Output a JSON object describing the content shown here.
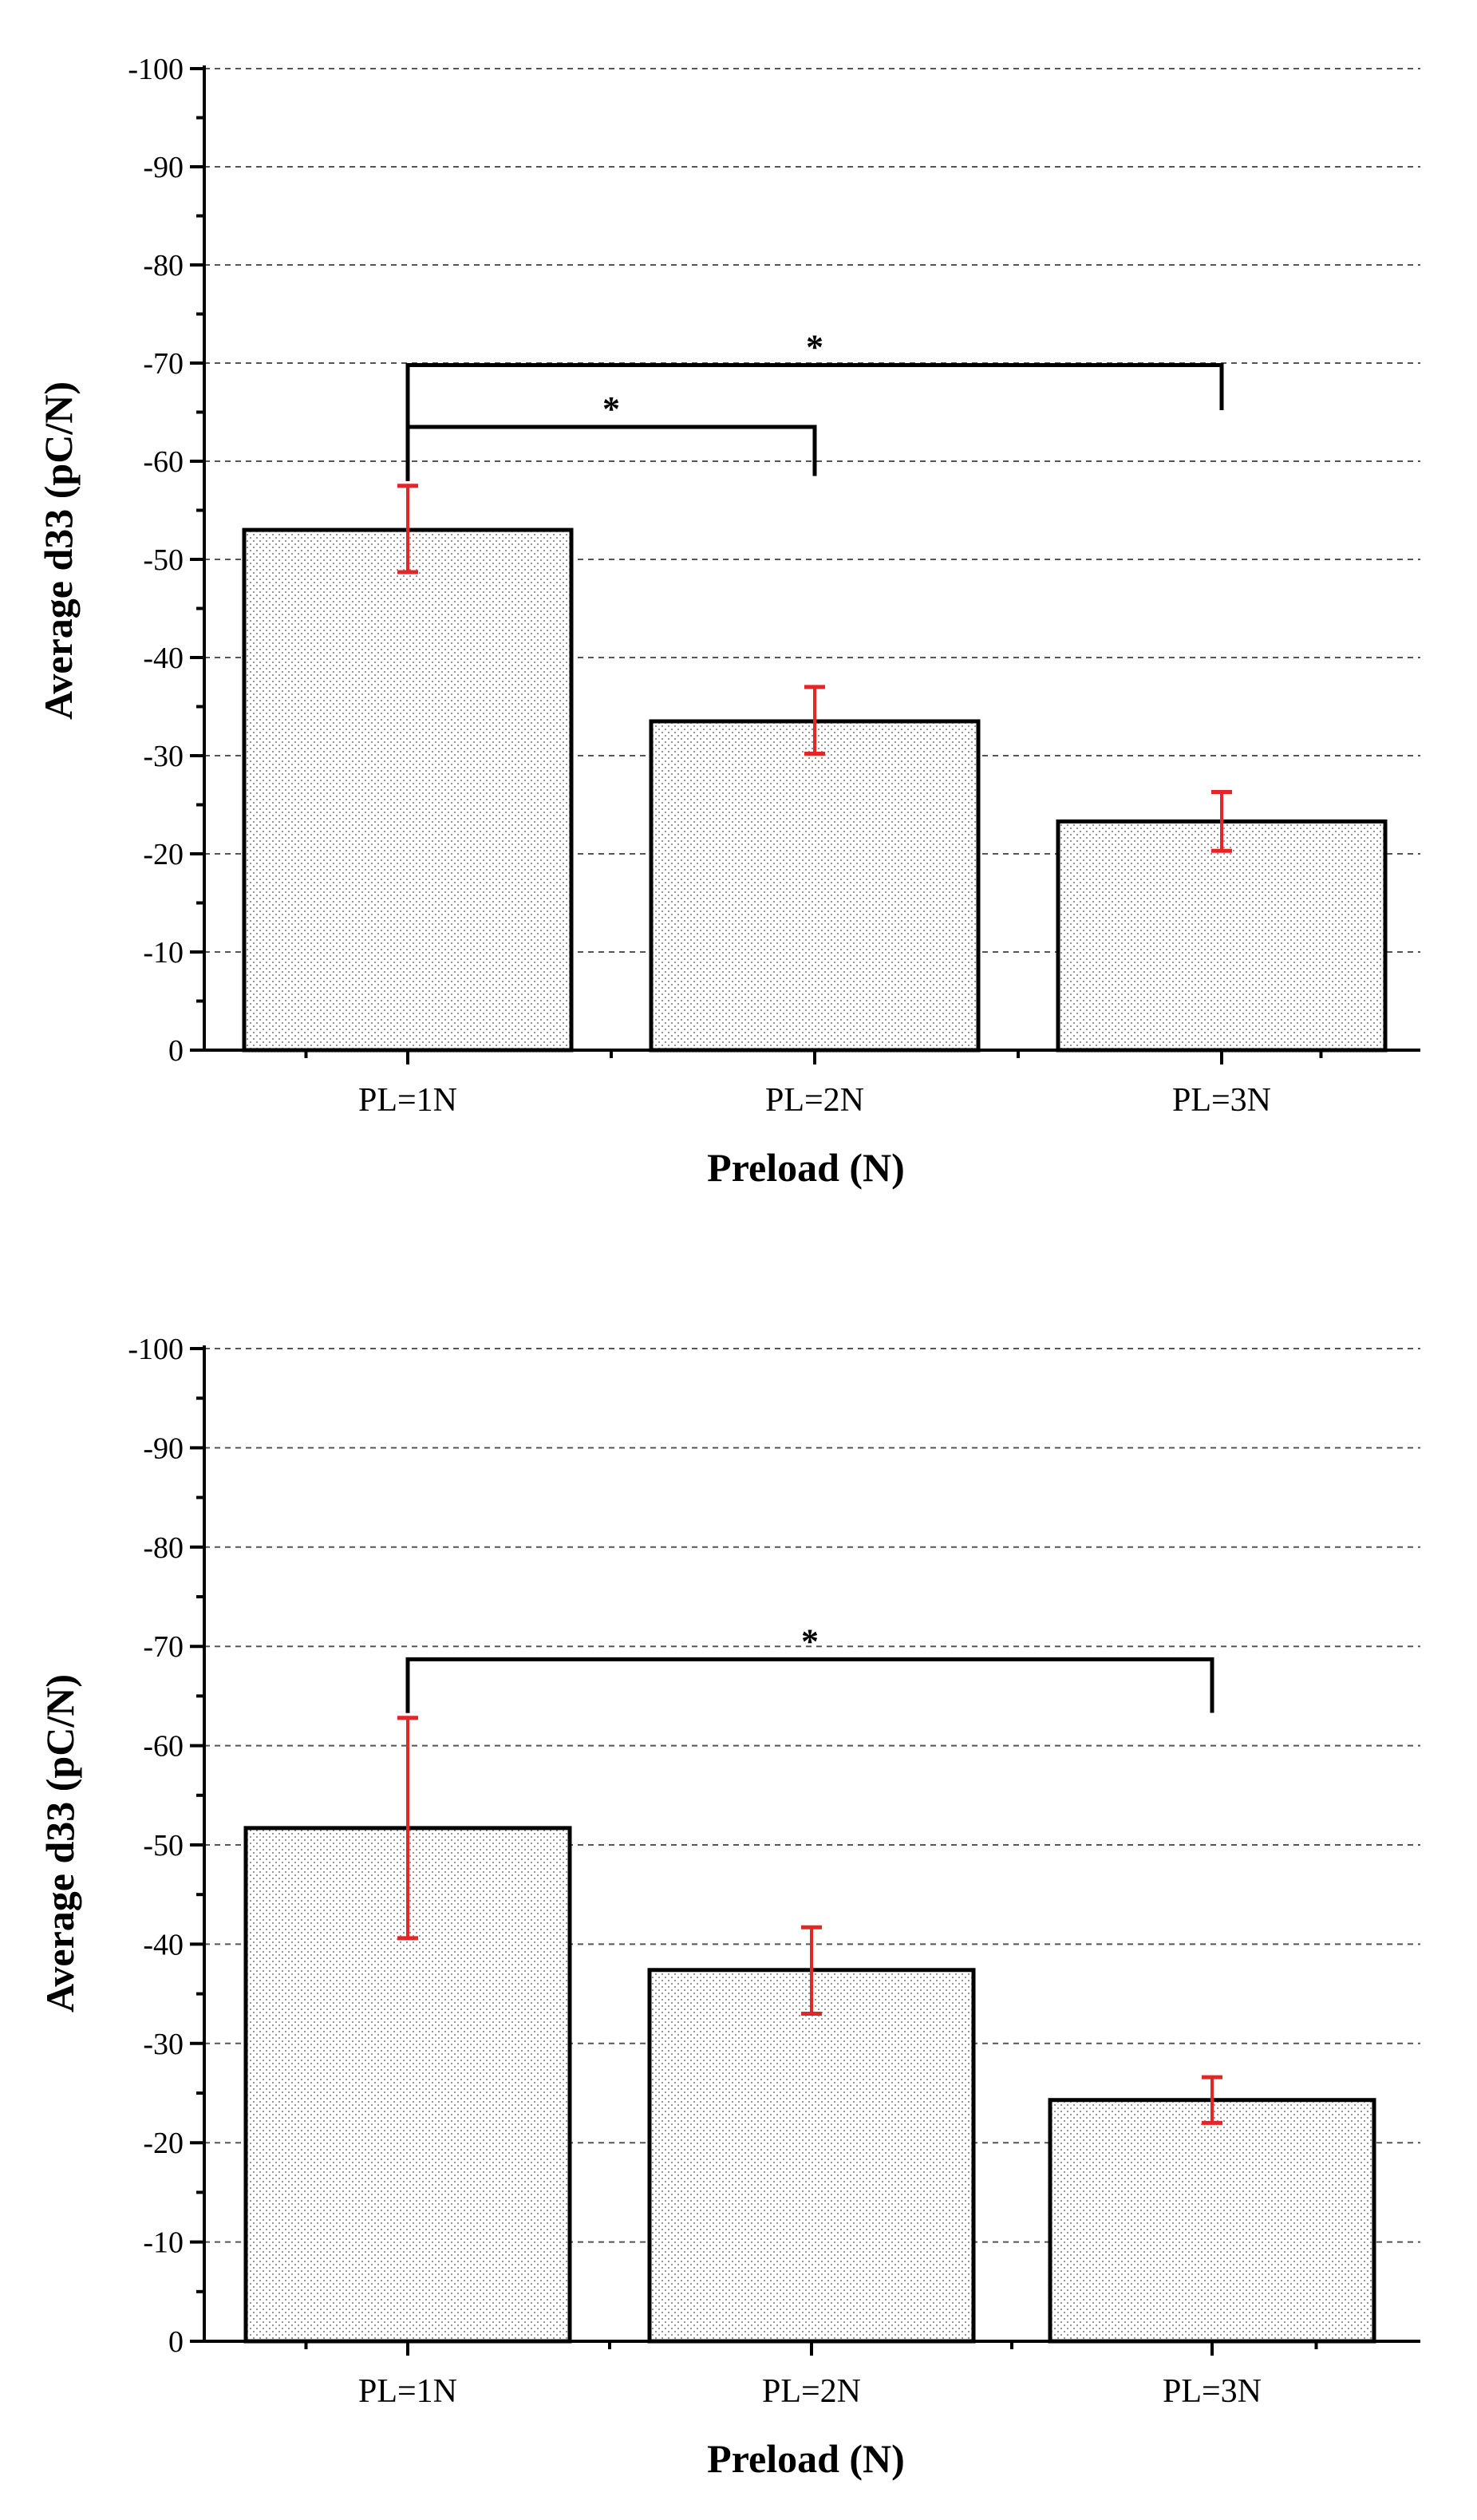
{
  "chart_data": [
    {
      "type": "bar",
      "title": "",
      "categories": [
        "PL=1N",
        "PL=2N",
        "PL=3N"
      ],
      "values": [
        -53,
        -33.5,
        -23.3
      ],
      "error_high": [
        -57.5,
        -37,
        -26.3
      ],
      "error_low": [
        -48.7,
        -30.2,
        -20.3
      ],
      "xlabel": "Preload (N)",
      "ylabel": "Average d33 (pC/N)",
      "ylim": [
        0,
        -100
      ],
      "yticks": [
        "0",
        "-10",
        "-20",
        "-30",
        "-40",
        "-50",
        "-60",
        "-70",
        "-80",
        "-90",
        "-100"
      ],
      "gridlines": true,
      "bar_pattern": "dotted",
      "error_bar_color": "#e32626",
      "significance": [
        {
          "from": 0,
          "to": 1,
          "label": "*",
          "level": -63.5,
          "right_end": -58.5
        },
        {
          "from": 0,
          "to": 2,
          "label": "*",
          "level": -69.8,
          "right_end": -65.2
        }
      ]
    },
    {
      "type": "bar",
      "title": "",
      "categories": [
        "PL=1N",
        "PL=2N",
        "PL=3N"
      ],
      "values": [
        -51.7,
        -37.4,
        -24.3
      ],
      "error_high": [
        -62.8,
        -41.7,
        -26.6
      ],
      "error_low": [
        -40.6,
        -33,
        -22
      ],
      "xlabel": "Preload (N)",
      "ylabel": "Average d33 (pC/N)",
      "ylim": [
        0,
        -100
      ],
      "yticks": [
        "0",
        "-10",
        "-20",
        "-30",
        "-40",
        "-50",
        "-60",
        "-70",
        "-80",
        "-90",
        "-100"
      ],
      "gridlines": true,
      "bar_pattern": "dotted",
      "error_bar_color": "#e32626",
      "significance": [
        {
          "from": 0,
          "to": 2,
          "label": "*",
          "level": -68.7,
          "right_end": -63.3
        }
      ]
    }
  ]
}
